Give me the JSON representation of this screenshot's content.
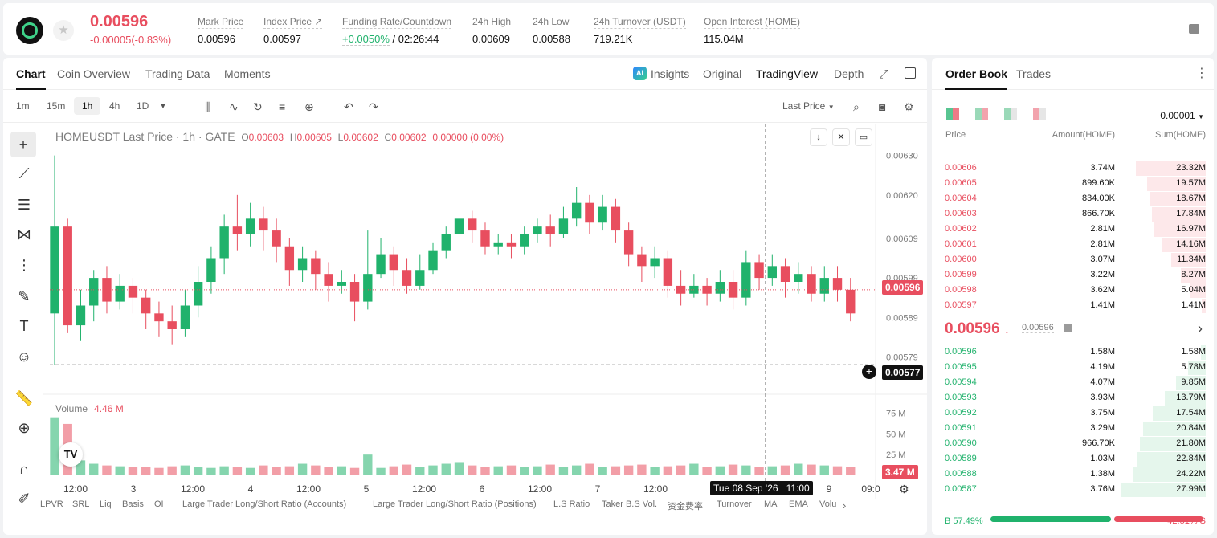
{
  "ticker": {
    "last_price": "0.00596",
    "change": "-0.00005(-0.83%)",
    "stats": [
      {
        "label": "Mark Price",
        "value": "0.00596"
      },
      {
        "label": "Index Price ↗",
        "value": "0.00597"
      },
      {
        "label": "Funding Rate/Countdown",
        "value_green": "+0.0050%",
        "value": " / 02:26:44"
      },
      {
        "label": "24h High",
        "value": "0.00609"
      },
      {
        "label": "24h Low",
        "value": "0.00588"
      },
      {
        "label": "24h Turnover (USDT)",
        "value": "719.21K"
      },
      {
        "label": "Open Interest (HOME)",
        "value": "115.04M"
      }
    ]
  },
  "chart_tabs": [
    "Chart",
    "Coin Overview",
    "Trading Data",
    "Moments"
  ],
  "view_tabs": [
    "Insights",
    "Original",
    "TradingView",
    "Depth"
  ],
  "ai_badge": "AI",
  "timeframes": [
    "1m",
    "15m",
    "1h",
    "4h",
    "1D"
  ],
  "price_type": "Last Price",
  "legend": {
    "symbol": "HOMEUSDT Last Price · 1h · GATE",
    "o_label": "O",
    "o": "0.00603",
    "h_label": "H",
    "h": "0.00605",
    "l_label": "L",
    "l": "0.00602",
    "c_label": "C",
    "c": "0.00602",
    "chg": "0.00000 (0.00%)"
  },
  "volume": {
    "label": "Volume",
    "value": "4.46 M"
  },
  "tags": {
    "last": "0.00596",
    "cursor": "0.00577",
    "volume": "3.47 M",
    "time": "Tue 08 Sep '26   11:00"
  },
  "indicators": [
    "LPVR",
    "SRL",
    "Liq",
    "Basis",
    "OI",
    "Large Trader Long/Short Ratio (Accounts)",
    "Large Trader Long/Short Ratio (Positions)",
    "L.S Ratio",
    "Taker B.S Vol.",
    "资金费率",
    "Turnover",
    "MA",
    "EMA",
    "Volu"
  ],
  "colors": {
    "up": "#20b26c",
    "down": "#e84e5f"
  },
  "chart_data": {
    "type": "candlestick",
    "title": "HOMEUSDT Last Price · 1h · GATE",
    "y_ticks": [
      "0.00630",
      "0.00620",
      "0.00609",
      "0.00599",
      "0.00589",
      "0.00579"
    ],
    "ylim": [
      0.00574,
      0.00634
    ],
    "x_ticks": [
      "12:00",
      "3",
      "12:00",
      "4",
      "12:00",
      "5",
      "12:00",
      "6",
      "12:00",
      "7",
      "12:00",
      "8",
      "9",
      "09:0"
    ],
    "volume_ticks": [
      "75 M",
      "50 M",
      "25 M"
    ],
    "last_price": 0.00596,
    "cursor_price": 0.00577,
    "candles": [
      [
        0.0059,
        0.00612,
        0.0063,
        0.00577
      ],
      [
        0.00612,
        0.00587,
        0.00614,
        0.00585
      ],
      [
        0.00587,
        0.00592,
        0.00596,
        0.00583
      ],
      [
        0.00592,
        0.00599,
        0.00601,
        0.00588
      ],
      [
        0.00599,
        0.00593,
        0.00602,
        0.0059
      ],
      [
        0.00593,
        0.00597,
        0.006,
        0.00591
      ],
      [
        0.00597,
        0.00594,
        0.00599,
        0.0059
      ],
      [
        0.00594,
        0.0059,
        0.00596,
        0.00586
      ],
      [
        0.0059,
        0.00588,
        0.00593,
        0.00584
      ],
      [
        0.00588,
        0.00586,
        0.00592,
        0.00582
      ],
      [
        0.00586,
        0.00592,
        0.00596,
        0.00584
      ],
      [
        0.00592,
        0.00598,
        0.00602,
        0.00589
      ],
      [
        0.00598,
        0.00604,
        0.00607,
        0.00595
      ],
      [
        0.00604,
        0.00612,
        0.00615,
        0.006
      ],
      [
        0.00612,
        0.0061,
        0.0062,
        0.00606
      ],
      [
        0.0061,
        0.00614,
        0.00618,
        0.00607
      ],
      [
        0.00614,
        0.00611,
        0.00617,
        0.00606
      ],
      [
        0.00611,
        0.00607,
        0.00614,
        0.00603
      ],
      [
        0.00607,
        0.00601,
        0.00609,
        0.00597
      ],
      [
        0.00601,
        0.00604,
        0.00607,
        0.00598
      ],
      [
        0.00604,
        0.006,
        0.00606,
        0.00596
      ],
      [
        0.006,
        0.00597,
        0.00603,
        0.00593
      ],
      [
        0.00597,
        0.00598,
        0.00601,
        0.00595
      ],
      [
        0.00598,
        0.00593,
        0.006,
        0.00588
      ],
      [
        0.00593,
        0.006,
        0.00611,
        0.00591
      ],
      [
        0.006,
        0.00605,
        0.00609,
        0.00599
      ],
      [
        0.00605,
        0.00601,
        0.00607,
        0.00597
      ],
      [
        0.00601,
        0.00597,
        0.00604,
        0.00595
      ],
      [
        0.00597,
        0.00601,
        0.00605,
        0.00596
      ],
      [
        0.00601,
        0.00606,
        0.00608,
        0.006
      ],
      [
        0.00606,
        0.0061,
        0.00612,
        0.00604
      ],
      [
        0.0061,
        0.00614,
        0.00617,
        0.00608
      ],
      [
        0.00614,
        0.00611,
        0.00616,
        0.00608
      ],
      [
        0.00611,
        0.00607,
        0.00613,
        0.00605
      ],
      [
        0.00607,
        0.00608,
        0.0061,
        0.00605
      ],
      [
        0.00608,
        0.00607,
        0.0061,
        0.00604
      ],
      [
        0.00607,
        0.0061,
        0.00612,
        0.00605
      ],
      [
        0.0061,
        0.00612,
        0.00614,
        0.00608
      ],
      [
        0.00612,
        0.0061,
        0.00615,
        0.00607
      ],
      [
        0.0061,
        0.00614,
        0.00617,
        0.00609
      ],
      [
        0.00614,
        0.00618,
        0.00622,
        0.00612
      ],
      [
        0.00618,
        0.00613,
        0.0062,
        0.0061
      ],
      [
        0.00613,
        0.00617,
        0.0062,
        0.00611
      ],
      [
        0.00617,
        0.00611,
        0.00619,
        0.00608
      ],
      [
        0.00611,
        0.00605,
        0.00613,
        0.00602
      ],
      [
        0.00605,
        0.00602,
        0.00607,
        0.00598
      ],
      [
        0.00602,
        0.00604,
        0.00607,
        0.00599
      ],
      [
        0.00604,
        0.00597,
        0.00606,
        0.00594
      ],
      [
        0.00597,
        0.00595,
        0.00601,
        0.00592
      ],
      [
        0.00595,
        0.00597,
        0.006,
        0.00594
      ],
      [
        0.00597,
        0.00595,
        0.00599,
        0.00592
      ],
      [
        0.00595,
        0.00598,
        0.00601,
        0.00593
      ],
      [
        0.00598,
        0.00594,
        0.00601,
        0.00591
      ],
      [
        0.00594,
        0.00603,
        0.00606,
        0.00592
      ],
      [
        0.00603,
        0.00599,
        0.00605,
        0.00596
      ],
      [
        0.00599,
        0.00602,
        0.00605,
        0.00597
      ],
      [
        0.00602,
        0.00598,
        0.00604,
        0.00594
      ],
      [
        0.00598,
        0.006,
        0.00603,
        0.00595
      ],
      [
        0.006,
        0.00595,
        0.00602,
        0.00593
      ],
      [
        0.00595,
        0.00599,
        0.00602,
        0.00593
      ],
      [
        0.00599,
        0.00596,
        0.00602,
        0.00593
      ],
      [
        0.00596,
        0.0059,
        0.00599,
        0.00588
      ]
    ],
    "volumes": [
      70,
      62,
      18,
      14,
      12,
      11,
      10,
      10,
      9,
      11,
      12,
      10,
      9,
      11,
      10,
      9,
      12,
      10,
      11,
      14,
      12,
      10,
      11,
      9,
      25,
      9,
      11,
      13,
      10,
      12,
      14,
      16,
      12,
      10,
      11,
      12,
      10,
      11,
      13,
      10,
      12,
      14,
      10,
      11,
      12,
      13,
      10,
      11,
      12,
      14,
      10,
      11,
      13,
      12,
      10,
      11,
      12,
      14,
      13,
      12,
      11,
      10
    ],
    "volume_ylim": [
      0,
      90
    ]
  },
  "orderbook": {
    "tabs": [
      "Order Book",
      "Trades"
    ],
    "precision": "0.00001",
    "headers": [
      "Price",
      "Amount(HOME)",
      "Sum(HOME)"
    ],
    "asks": [
      {
        "price": "0.00606",
        "amount": "3.74M",
        "sum": "23.32M",
        "depth": 0.83
      },
      {
        "price": "0.00605",
        "amount": "899.60K",
        "sum": "19.57M",
        "depth": 0.7
      },
      {
        "price": "0.00604",
        "amount": "834.00K",
        "sum": "18.67M",
        "depth": 0.67
      },
      {
        "price": "0.00603",
        "amount": "866.70K",
        "sum": "17.84M",
        "depth": 0.64
      },
      {
        "price": "0.00602",
        "amount": "2.81M",
        "sum": "16.97M",
        "depth": 0.61
      },
      {
        "price": "0.00601",
        "amount": "2.81M",
        "sum": "14.16M",
        "depth": 0.51
      },
      {
        "price": "0.00600",
        "amount": "3.07M",
        "sum": "11.34M",
        "depth": 0.41
      },
      {
        "price": "0.00599",
        "amount": "3.22M",
        "sum": "8.27M",
        "depth": 0.3
      },
      {
        "price": "0.00598",
        "amount": "3.62M",
        "sum": "5.04M",
        "depth": 0.18
      },
      {
        "price": "0.00597",
        "amount": "1.41M",
        "sum": "1.41M",
        "depth": 0.05
      }
    ],
    "mid_price": "0.00596",
    "mid_arrow": "↓",
    "mark_price": "0.00596",
    "bids": [
      {
        "price": "0.00596",
        "amount": "1.58M",
        "sum": "1.58M",
        "depth": 0.06
      },
      {
        "price": "0.00595",
        "amount": "4.19M",
        "sum": "5.78M",
        "depth": 0.21
      },
      {
        "price": "0.00594",
        "amount": "4.07M",
        "sum": "9.85M",
        "depth": 0.35
      },
      {
        "price": "0.00593",
        "amount": "3.93M",
        "sum": "13.79M",
        "depth": 0.49
      },
      {
        "price": "0.00592",
        "amount": "3.75M",
        "sum": "17.54M",
        "depth": 0.63
      },
      {
        "price": "0.00591",
        "amount": "3.29M",
        "sum": "20.84M",
        "depth": 0.74
      },
      {
        "price": "0.00590",
        "amount": "966.70K",
        "sum": "21.80M",
        "depth": 0.78
      },
      {
        "price": "0.00589",
        "amount": "1.03M",
        "sum": "22.84M",
        "depth": 0.82
      },
      {
        "price": "0.00588",
        "amount": "1.38M",
        "sum": "24.22M",
        "depth": 0.87
      },
      {
        "price": "0.00587",
        "amount": "3.76M",
        "sum": "27.99M",
        "depth": 1.0
      }
    ],
    "buy_ratio": "B 57.49%",
    "sell_ratio": "42.51% S",
    "buy_pct": 57.49
  }
}
